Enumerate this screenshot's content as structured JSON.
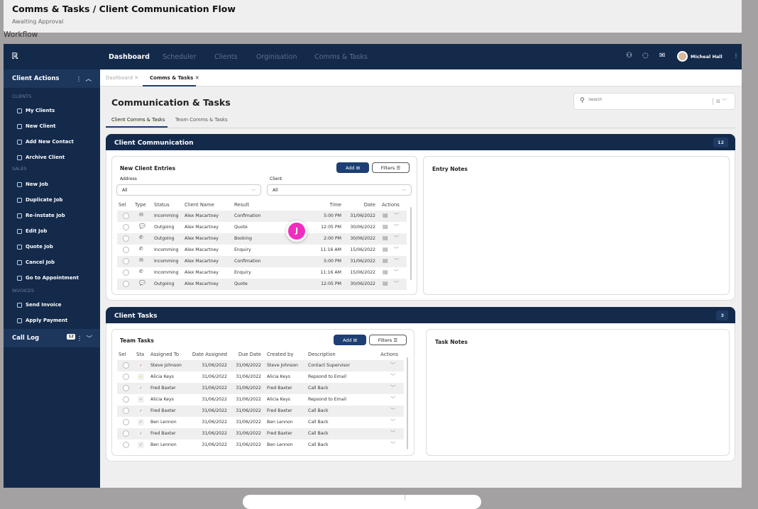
{
  "header": {
    "title": "Comms & Tasks / Client Communication Flow",
    "status": "Awaiting Approval",
    "workflow_label": "Workflow"
  },
  "nav": {
    "items": [
      "Dashboard",
      "Scheduler",
      "Clients",
      "Orginisation",
      "Comms & Tasks"
    ],
    "active": "Dashboard",
    "user_name": "Micheal Hall"
  },
  "sidebar": {
    "title": "Client Actions",
    "sections": [
      {
        "label": "CLIENTS",
        "items": [
          "My Clients",
          "New Client",
          "Add New Contact",
          "Archive Client"
        ]
      },
      {
        "label": "SALES",
        "items": [
          "New Job",
          "Duplicate Job",
          "Re-instate Job",
          "Edit Job",
          "Quote Job",
          "Cancel Job",
          "Go to Appointment"
        ]
      },
      {
        "label": "INVOICES",
        "items": [
          "Send Invoice",
          "Apply Payment"
        ]
      }
    ],
    "call_log": "Call Log",
    "call_log_count": "12"
  },
  "tabs": [
    {
      "label": "Dashboard",
      "active": false
    },
    {
      "label": "Comms & Tasks",
      "active": true
    }
  ],
  "page": {
    "title": "Communication & Tasks",
    "subtabs": [
      "Client Comms & Tasks",
      "Team Comms & Tasks"
    ],
    "search_placeholder": "Search"
  },
  "client_comm": {
    "title": "Client Communication",
    "count": "12",
    "entries_title": "New Client Entries",
    "add": "Add",
    "filters": "Filters",
    "address_label": "Address",
    "address_value": "All",
    "client_label": "Client",
    "client_value": "All",
    "notes_title": "Entry Notes",
    "columns": [
      "Sel",
      "Type",
      "Status",
      "Client Name",
      "Result",
      "Time",
      "Date",
      "Actions"
    ],
    "rows": [
      {
        "type": "email",
        "status": "Incomming",
        "name": "Alex Macartney",
        "result": "Confimation",
        "time": "5:00 PM",
        "date": "31/06/2022"
      },
      {
        "type": "chat",
        "status": "Outgoing",
        "name": "Alex Macartney",
        "result": "Quote",
        "time": "12:05 PM",
        "date": "30/06/2022"
      },
      {
        "type": "phone",
        "status": "Outgoing",
        "name": "Alex Macartney",
        "result": "Booking",
        "time": "2:00 PM",
        "date": "30/06/2022"
      },
      {
        "type": "phone",
        "status": "Incomming",
        "name": "Alex Macartney",
        "result": "Enquiry",
        "time": "11:16 AM",
        "date": "15/06/2022"
      },
      {
        "type": "email",
        "status": "Incomming",
        "name": "Alex Macartney",
        "result": "Confimation",
        "time": "5:00 PM",
        "date": "31/06/2022"
      },
      {
        "type": "phone",
        "status": "Incomming",
        "name": "Alex Macartney",
        "result": "Enquiry",
        "time": "11:16 AM",
        "date": "15/06/2022"
      },
      {
        "type": "chat",
        "status": "Outgoing",
        "name": "Alex Macartney",
        "result": "Quote",
        "time": "12:05 PM",
        "date": "30/06/2022"
      }
    ]
  },
  "client_tasks": {
    "title": "Client Tasks",
    "count": "3",
    "tasks_title": "Team Tasks",
    "add": "Add",
    "filters": "Filters",
    "notes_title": "Task Notes",
    "columns": [
      "Sel",
      "Sta",
      "Assigned To",
      "Date Assigned",
      "Due Date",
      "Created by",
      "Description",
      "Actions"
    ],
    "rows": [
      {
        "status": "red",
        "assigned": "Steve Johnson",
        "date_assigned": "31/06/2022",
        "due": "31/06/2022",
        "created": "Steve Johnson",
        "desc": "Contact Supervisor"
      },
      {
        "status": "yellow",
        "assigned": "Alicia Keys",
        "date_assigned": "31/06/2022",
        "due": "31/06/2022",
        "created": "Alicia Keys",
        "desc": "Repsond to Email"
      },
      {
        "status": "green",
        "assigned": "Fred Baxter",
        "date_assigned": "31/06/2022",
        "due": "31/06/2022",
        "created": "Fred Baxter",
        "desc": "Call Back"
      },
      {
        "status": "green",
        "assigned": "Alicia Keys",
        "date_assigned": "31/06/2022",
        "due": "31/06/2022",
        "created": "Alicia Keys",
        "desc": "Repsond to Email"
      },
      {
        "status": "green",
        "assigned": "Fred Baxter",
        "date_assigned": "31/06/2022",
        "due": "31/06/2022",
        "created": "Fred Baxter",
        "desc": "Call Back"
      },
      {
        "status": "green",
        "assigned": "Ben Lennon",
        "date_assigned": "31/06/2022",
        "due": "31/06/2022",
        "created": "Ben Lennon",
        "desc": "Call Back"
      },
      {
        "status": "green",
        "assigned": "Fred Baxter",
        "date_assigned": "31/06/2022",
        "due": "31/06/2022",
        "created": "Fred Baxter",
        "desc": "Call Back"
      },
      {
        "status": "green",
        "assigned": "Ben Lennon",
        "date_assigned": "31/06/2022",
        "due": "31/06/2022",
        "created": "Ben Lennon",
        "desc": "Call Back"
      }
    ]
  },
  "cursor_avatar": "J",
  "colors": {
    "navy": "#132a4b",
    "accent": "#1d3f73",
    "cursor": "#f22cbf",
    "red": "#e05555",
    "yellow": "#e8b931",
    "green": "#5aa36a"
  }
}
